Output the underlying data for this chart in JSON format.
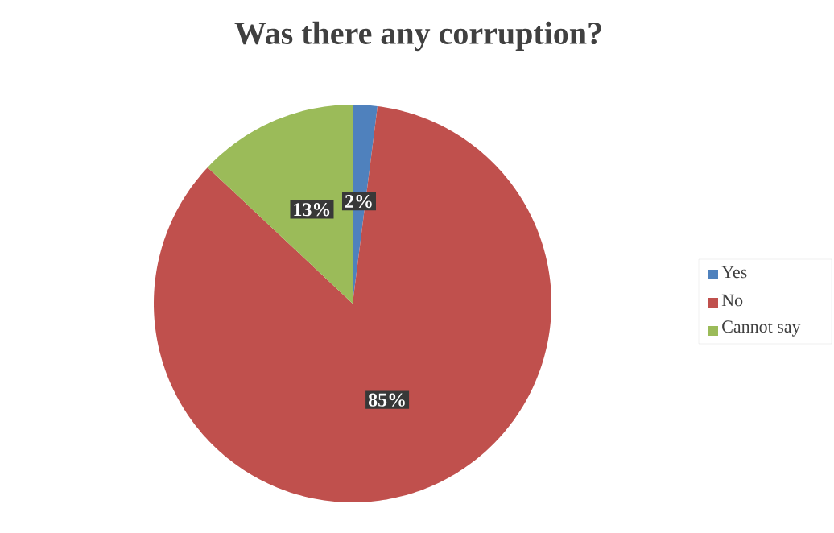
{
  "chart_data": {
    "type": "pie",
    "title": "Was there any corruption?",
    "categories": [
      "Yes",
      "No",
      "Cannot say"
    ],
    "values": [
      2,
      85,
      13
    ],
    "colors": [
      "#4f81bd",
      "#c0504d",
      "#9bbb59"
    ],
    "value_labels": [
      "2%",
      "85%",
      "13%"
    ],
    "legend": "right"
  }
}
